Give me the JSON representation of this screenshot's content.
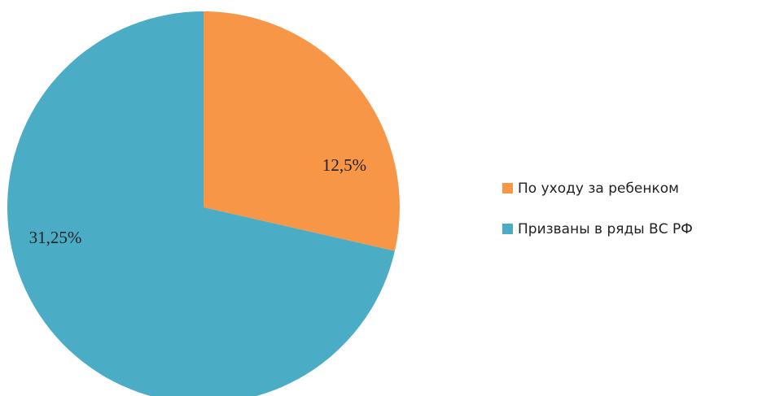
{
  "chart_data": {
    "type": "pie",
    "start_angle_deg": 0,
    "direction": "clockwise",
    "slices": [
      {
        "label": "По уходу за ребенком",
        "value": 12.5,
        "display": "12,5%",
        "color": "#F79646"
      },
      {
        "label": "Призваны в ряды ВС РФ",
        "value": 31.25,
        "display": "31,25%",
        "color": "#4BACC6"
      }
    ],
    "legend": {
      "position": "right",
      "entries": [
        "По уходу за ребенком",
        "Призваны в ряды ВС РФ"
      ]
    }
  }
}
